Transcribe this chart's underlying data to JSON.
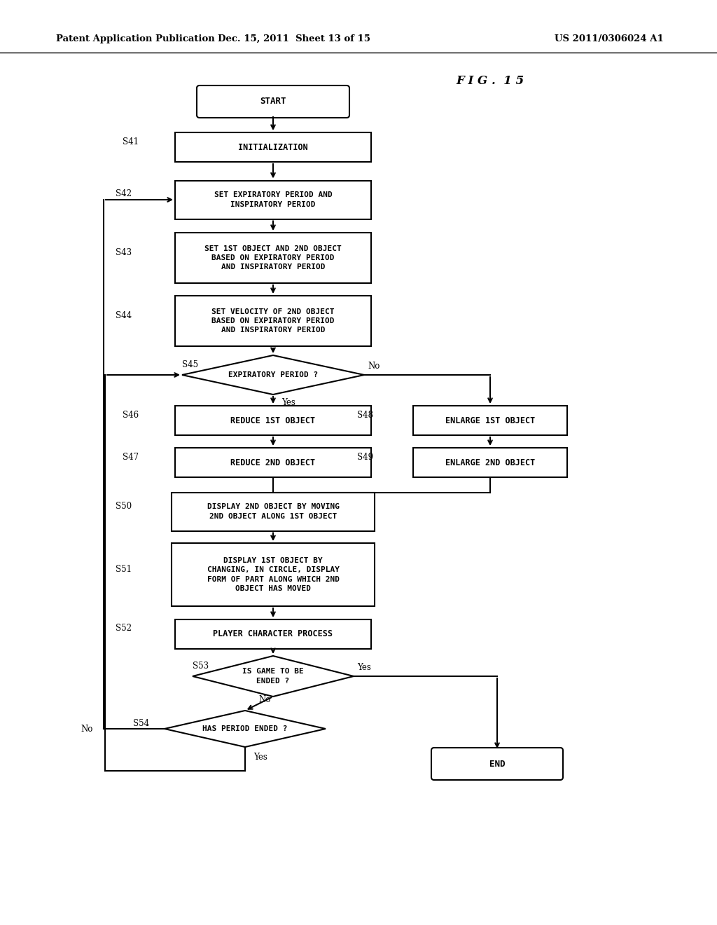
{
  "header_left": "Patent Application Publication",
  "header_mid": "Dec. 15, 2011  Sheet 13 of 15",
  "header_right": "US 2011/0306024 A1",
  "fig_label": "F I G .  1 5",
  "bg_color": "#ffffff",
  "line_color": "#000000",
  "text_color": "#000000"
}
